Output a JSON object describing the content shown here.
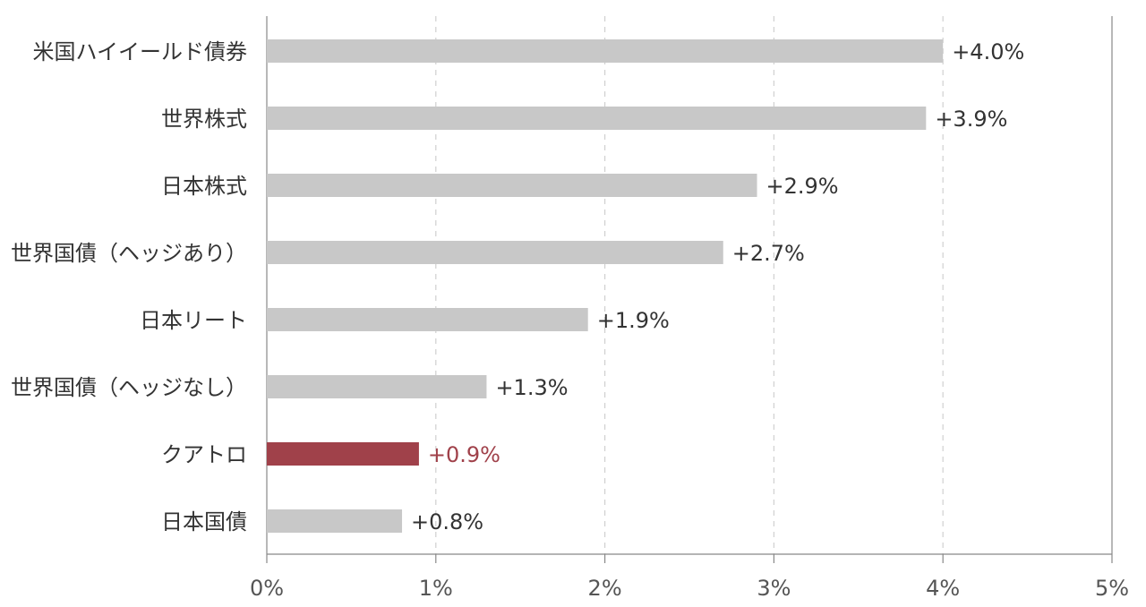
{
  "chart_data": {
    "type": "bar",
    "orientation": "horizontal",
    "categories": [
      "米国ハイイールド債券",
      "世界株式",
      "日本株式",
      "世界国債（ヘッジあり）",
      "日本リート",
      "世界国債（ヘッジなし）",
      "クアトロ",
      "日本国債"
    ],
    "values": [
      4.0,
      3.9,
      2.9,
      2.7,
      1.9,
      1.3,
      0.9,
      0.8
    ],
    "value_labels": [
      "+4.0%",
      "+3.9%",
      "+2.9%",
      "+2.7%",
      "+1.9%",
      "+1.3%",
      "+0.9%",
      "+0.8%"
    ],
    "highlight_index": 6,
    "xlim": [
      0,
      5
    ],
    "x_ticks": [
      0,
      1,
      2,
      3,
      4,
      5
    ],
    "x_tick_labels": [
      "0%",
      "1%",
      "2%",
      "3%",
      "4%",
      "5%"
    ],
    "grid": "vertical dashed",
    "legend": "none",
    "colors": {
      "bar": "#c8c8c8",
      "highlight": "#a0414a",
      "highlight_text": "#a0414a",
      "grid": "#d0d0d0",
      "axis": "#888888"
    }
  }
}
